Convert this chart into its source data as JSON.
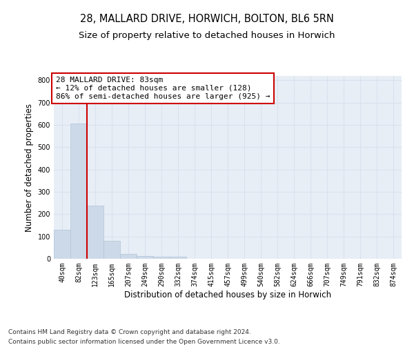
{
  "title_line1": "28, MALLARD DRIVE, HORWICH, BOLTON, BL6 5RN",
  "title_line2": "Size of property relative to detached houses in Horwich",
  "xlabel": "Distribution of detached houses by size in Horwich",
  "ylabel": "Number of detached properties",
  "footer_line1": "Contains HM Land Registry data © Crown copyright and database right 2024.",
  "footer_line2": "Contains public sector information licensed under the Open Government Licence v3.0.",
  "bar_labels": [
    "40sqm",
    "82sqm",
    "123sqm",
    "165sqm",
    "207sqm",
    "249sqm",
    "290sqm",
    "332sqm",
    "374sqm",
    "415sqm",
    "457sqm",
    "499sqm",
    "540sqm",
    "582sqm",
    "624sqm",
    "666sqm",
    "707sqm",
    "749sqm",
    "791sqm",
    "832sqm",
    "874sqm"
  ],
  "bar_values": [
    130,
    607,
    237,
    80,
    22,
    12,
    8,
    8,
    0,
    0,
    0,
    0,
    0,
    0,
    0,
    0,
    0,
    0,
    0,
    0,
    0
  ],
  "bar_color": "#ccd9e8",
  "bar_edge_color": "#b0c4d8",
  "grid_color": "#d8e2ee",
  "background_color": "#e8eef6",
  "annotation_text": "28 MALLARD DRIVE: 83sqm\n← 12% of detached houses are smaller (128)\n86% of semi-detached houses are larger (925) →",
  "annotation_box_color": "#ffffff",
  "annotation_box_edge": "#cc0000",
  "marker_line_color": "#cc0000",
  "ylim": [
    0,
    820
  ],
  "yticks": [
    0,
    100,
    200,
    300,
    400,
    500,
    600,
    700,
    800
  ],
  "fig_width": 6.0,
  "fig_height": 5.0,
  "dpi": 100,
  "title_fontsize": 10.5,
  "subtitle_fontsize": 9.5,
  "axis_label_fontsize": 8.5,
  "tick_fontsize": 7,
  "annotation_fontsize": 8,
  "footer_fontsize": 6.5
}
